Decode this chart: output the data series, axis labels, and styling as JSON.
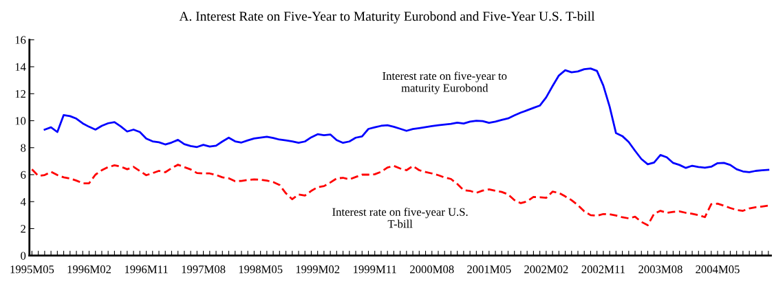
{
  "chart_data": {
    "type": "line",
    "title": "A. Interest Rate on Five-Year to Maturity Eurobond and Five-Year U.S. T-bill",
    "categories": [
      "1995M05",
      null,
      null,
      null,
      null,
      null,
      null,
      null,
      null,
      "1996M02",
      null,
      null,
      null,
      null,
      null,
      null,
      null,
      null,
      "1996M11",
      null,
      null,
      null,
      null,
      null,
      null,
      null,
      null,
      "1997M08",
      null,
      null,
      null,
      null,
      null,
      null,
      null,
      null,
      "1998M05",
      null,
      null,
      null,
      null,
      null,
      null,
      null,
      null,
      "1999M02",
      null,
      null,
      null,
      null,
      null,
      null,
      null,
      null,
      "1999M11",
      null,
      null,
      null,
      null,
      null,
      null,
      null,
      null,
      "2000M08",
      null,
      null,
      null,
      null,
      null,
      null,
      null,
      null,
      "2001M05",
      null,
      null,
      null,
      null,
      null,
      null,
      null,
      null,
      "2002M02",
      null,
      null,
      null,
      null,
      null,
      null,
      null,
      null,
      "2002M11",
      null,
      null,
      null,
      null,
      null,
      null,
      null,
      null,
      "2003M08",
      null,
      null,
      null,
      null,
      null,
      null,
      null,
      null,
      "2004M05",
      null,
      null,
      null,
      null,
      null,
      null,
      null,
      null
    ],
    "series": [
      {
        "name": "Interest rate on five-year to\nmaturity Eurobond",
        "color": "#0000ff",
        "line_style": "solid",
        "values": [
          null,
          null,
          9.34,
          9.51,
          9.16,
          10.42,
          10.34,
          10.15,
          9.8,
          9.55,
          9.34,
          9.62,
          9.81,
          9.89,
          9.57,
          9.2,
          9.34,
          9.16,
          8.68,
          8.47,
          8.4,
          8.24,
          8.38,
          8.58,
          8.26,
          8.12,
          8.05,
          8.21,
          8.08,
          8.15,
          8.46,
          8.74,
          8.47,
          8.38,
          8.54,
          8.68,
          8.74,
          8.81,
          8.72,
          8.6,
          8.54,
          8.47,
          8.36,
          8.46,
          8.77,
          9.0,
          8.93,
          8.98,
          8.56,
          8.36,
          8.46,
          8.74,
          8.83,
          9.39,
          9.51,
          9.62,
          9.66,
          9.55,
          9.4,
          9.25,
          9.38,
          9.45,
          9.52,
          9.6,
          9.66,
          9.72,
          9.76,
          9.86,
          9.79,
          9.93,
          10.0,
          9.97,
          9.84,
          9.93,
          10.06,
          10.17,
          10.4,
          10.6,
          10.77,
          10.95,
          11.12,
          11.73,
          12.56,
          13.35,
          13.74,
          13.59,
          13.65,
          13.82,
          13.87,
          13.69,
          12.61,
          11.04,
          9.08,
          8.86,
          8.42,
          7.77,
          7.16,
          6.77,
          6.9,
          7.46,
          7.29,
          6.87,
          6.72,
          6.5,
          6.66,
          6.57,
          6.51,
          6.59,
          6.85,
          6.87,
          6.72,
          6.4,
          6.24,
          6.18,
          6.28,
          6.33,
          6.36
        ]
      },
      {
        "name": "Interest rate on five-year U.S.\nT-bill",
        "color": "#ff0000",
        "line_style": "dashed",
        "values": [
          6.39,
          5.91,
          5.97,
          6.21,
          5.97,
          5.8,
          5.72,
          5.56,
          5.36,
          5.36,
          6.0,
          6.33,
          6.56,
          6.69,
          6.6,
          6.4,
          6.58,
          6.27,
          5.96,
          6.11,
          6.28,
          6.18,
          6.48,
          6.74,
          6.56,
          6.39,
          6.12,
          6.09,
          6.09,
          5.98,
          5.8,
          5.73,
          5.51,
          5.54,
          5.61,
          5.65,
          5.63,
          5.56,
          5.45,
          5.24,
          4.62,
          4.18,
          4.53,
          4.45,
          4.8,
          5.07,
          5.15,
          5.42,
          5.72,
          5.77,
          5.65,
          5.83,
          6.0,
          6.0,
          6.03,
          6.21,
          6.53,
          6.65,
          6.46,
          6.33,
          6.64,
          6.33,
          6.2,
          6.09,
          5.96,
          5.79,
          5.68,
          5.31,
          4.85,
          4.8,
          4.65,
          4.82,
          4.91,
          4.8,
          4.72,
          4.54,
          4.11,
          3.89,
          4.02,
          4.35,
          4.33,
          4.28,
          4.74,
          4.65,
          4.39,
          4.11,
          3.74,
          3.28,
          3.0,
          2.95,
          3.08,
          3.06,
          2.97,
          2.84,
          2.76,
          2.88,
          2.5,
          2.25,
          3.1,
          3.32,
          3.17,
          3.24,
          3.28,
          3.17,
          3.1,
          3.0,
          2.85,
          3.81,
          3.85,
          3.7,
          3.53,
          3.38,
          3.32,
          3.5,
          3.59,
          3.64,
          3.7
        ]
      }
    ],
    "ylim": [
      0,
      16
    ],
    "yticks": [
      0,
      2,
      4,
      6,
      8,
      10,
      12,
      14,
      16
    ],
    "grid": false,
    "legend": false
  }
}
